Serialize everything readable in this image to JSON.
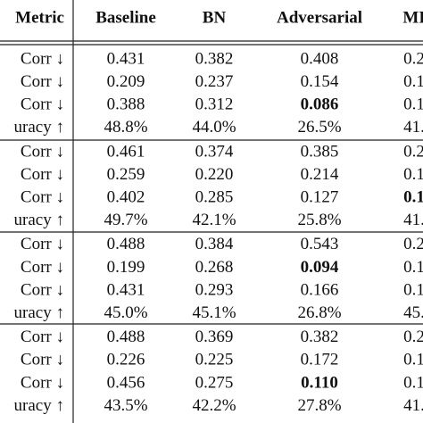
{
  "table": {
    "header": [
      "Metric",
      "Baseline",
      "BN",
      "Adversarial",
      "MI"
    ],
    "rows": [
      [
        "Corr ↓",
        "0.431",
        "0.382",
        "0.408",
        "0.2"
      ],
      [
        "Corr ↓",
        "0.209",
        "0.237",
        "0.154",
        "0.1"
      ],
      [
        "Corr ↓",
        "0.388",
        "0.312",
        {
          "text": "0.086",
          "bold": true
        },
        "0.1"
      ],
      [
        "uracy ↑",
        "48.8%",
        "44.0%",
        "26.5%",
        "41."
      ],
      [
        "Corr ↓",
        "0.461",
        "0.374",
        "0.385",
        "0.2"
      ],
      [
        "Corr ↓",
        "0.259",
        "0.220",
        "0.214",
        "0.1"
      ],
      [
        "Corr ↓",
        "0.402",
        "0.285",
        "0.127",
        {
          "text": "0.1",
          "bold": true
        }
      ],
      [
        "uracy ↑",
        "49.7%",
        "42.1%",
        "25.8%",
        "41."
      ],
      [
        "Corr ↓",
        "0.488",
        "0.384",
        "0.543",
        "0.2"
      ],
      [
        "Corr ↓",
        "0.199",
        "0.268",
        {
          "text": "0.094",
          "bold": true
        },
        "0.1"
      ],
      [
        "Corr ↓",
        "0.431",
        "0.293",
        "0.166",
        "0.1"
      ],
      [
        "uracy ↑",
        "45.0%",
        "45.1%",
        "26.8%",
        "45."
      ],
      [
        "Corr ↓",
        "0.488",
        "0.369",
        "0.382",
        "0.2"
      ],
      [
        "Corr ↓",
        "0.226",
        "0.225",
        "0.172",
        "0.1"
      ],
      [
        "Corr ↓",
        "0.456",
        "0.275",
        {
          "text": "0.110",
          "bold": true
        },
        "0.1"
      ],
      [
        "uracy ↑",
        "43.5%",
        "42.2%",
        "27.8%",
        "41."
      ]
    ]
  }
}
